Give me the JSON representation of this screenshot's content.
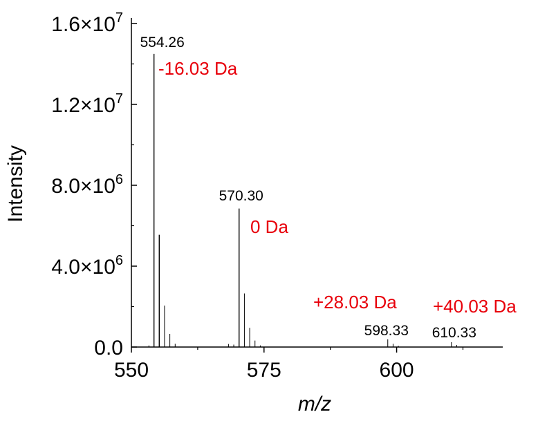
{
  "chart_data": {
    "type": "bar",
    "title": "",
    "xlabel": "m/z",
    "ylabel": "Intensity",
    "xlim": [
      550,
      620
    ],
    "ylim": [
      0,
      16000000
    ],
    "x_ticks": [
      550,
      575,
      600
    ],
    "x_tick_labels": [
      "550",
      "575",
      "600"
    ],
    "y_ticks": [
      0,
      4000000,
      8000000,
      12000000,
      16000000
    ],
    "y_tick_labels": [
      {
        "mant": "0.0",
        "exp": ""
      },
      {
        "mant": "4.0×10",
        "exp": "6"
      },
      {
        "mant": "8.0×10",
        "exp": "6"
      },
      {
        "mant": "1.2×10",
        "exp": "7"
      },
      {
        "mant": "1.6×10",
        "exp": "7"
      }
    ],
    "grid": false,
    "peaks": [
      {
        "x": 553.3,
        "y": 80000
      },
      {
        "x": 554.26,
        "y": 14500000
      },
      {
        "x": 555.25,
        "y": 5550000
      },
      {
        "x": 556.25,
        "y": 2050000
      },
      {
        "x": 557.25,
        "y": 650000
      },
      {
        "x": 558.25,
        "y": 160000
      },
      {
        "x": 568.3,
        "y": 150000
      },
      {
        "x": 569.3,
        "y": 120000
      },
      {
        "x": 570.3,
        "y": 6850000
      },
      {
        "x": 571.3,
        "y": 2650000
      },
      {
        "x": 572.3,
        "y": 950000
      },
      {
        "x": 573.3,
        "y": 320000
      },
      {
        "x": 574.3,
        "y": 80000
      },
      {
        "x": 598.33,
        "y": 380000
      },
      {
        "x": 599.33,
        "y": 160000
      },
      {
        "x": 600.33,
        "y": 60000
      },
      {
        "x": 610.33,
        "y": 240000
      },
      {
        "x": 611.33,
        "y": 100000
      }
    ],
    "peak_labels": [
      {
        "text": "554.26",
        "x": 554.26
      },
      {
        "text": "570.30",
        "x": 570.3
      },
      {
        "text": "598.33",
        "x": 598.33
      },
      {
        "text": "610.33",
        "x": 610.33
      }
    ],
    "annotations": [
      {
        "text": "-16.03 Da",
        "color": "#e8000b"
      },
      {
        "text": "0 Da",
        "color": "#e8000b"
      },
      {
        "text": "+28.03 Da",
        "color": "#e8000b"
      },
      {
        "text": "+40.03 Da",
        "color": "#e8000b"
      }
    ]
  }
}
